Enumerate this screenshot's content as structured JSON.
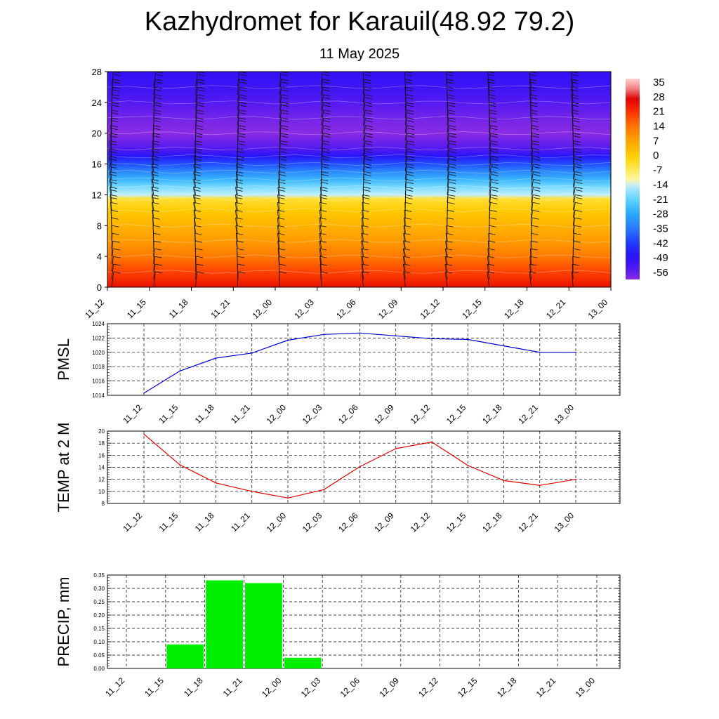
{
  "title": "Kazhydromet for Karauil(48.92 79.2)",
  "subtitle": "11 May 2025",
  "time_labels": [
    "11_12",
    "11_15",
    "11_18",
    "11_21",
    "12_00",
    "12_03",
    "12_06",
    "12_09",
    "12_12",
    "12_15",
    "12_18",
    "12_21",
    "13_00"
  ],
  "colors": {
    "pmsl_line": "#0000cc",
    "temp_line": "#dd0000",
    "precip_bar": "#00ee00",
    "grid": "#000000"
  },
  "chart_data": [
    {
      "name_key": "cross_section",
      "type": "heatmap",
      "x": [
        "11_12",
        "11_15",
        "11_18",
        "11_21",
        "12_00",
        "12_03",
        "12_06",
        "12_09",
        "12_12",
        "12_15",
        "12_18",
        "12_21",
        "13_00"
      ],
      "yticks": [
        0,
        4,
        8,
        12,
        16,
        20,
        24,
        28
      ],
      "ylim": [
        0,
        28
      ],
      "colorbar": {
        "labels": [
          "35",
          "28",
          "21",
          "14",
          "7",
          "0",
          "-7",
          "-14",
          "-21",
          "-28",
          "-35",
          "-42",
          "-49",
          "-56"
        ],
        "range": [
          -60,
          38
        ]
      },
      "temperature_profile": [
        {
          "y": 0,
          "t": 26
        },
        {
          "y": 2,
          "t": 20
        },
        {
          "y": 4,
          "t": 14
        },
        {
          "y": 6,
          "t": 9
        },
        {
          "y": 8,
          "t": 5
        },
        {
          "y": 10,
          "t": 1
        },
        {
          "y": 11.5,
          "t": -4
        },
        {
          "y": 12,
          "t": -14
        },
        {
          "y": 13,
          "t": -19
        },
        {
          "y": 14,
          "t": -26
        },
        {
          "y": 15,
          "t": -33
        },
        {
          "y": 16,
          "t": -40
        },
        {
          "y": 17,
          "t": -48
        },
        {
          "y": 18,
          "t": -55
        },
        {
          "y": 20,
          "t": -60
        },
        {
          "y": 22,
          "t": -58
        },
        {
          "y": 24,
          "t": -55
        },
        {
          "y": 26,
          "t": -52
        },
        {
          "y": 28,
          "t": -50
        }
      ],
      "wind_levels": [
        1,
        2,
        3,
        4,
        5,
        6,
        7,
        8,
        9,
        10,
        11,
        12,
        13,
        14,
        15,
        16,
        17,
        18,
        19,
        20,
        21,
        22,
        23,
        24,
        25,
        26,
        27
      ]
    },
    {
      "name_key": "pmsl",
      "type": "line",
      "ylabel": "PMSL",
      "x": [
        "11_12",
        "11_15",
        "11_18",
        "11_21",
        "12_00",
        "12_03",
        "12_06",
        "12_09",
        "12_12",
        "12_15",
        "12_18",
        "12_21",
        "13_00"
      ],
      "values": [
        1014.3,
        1017.4,
        1019.2,
        1019.9,
        1021.7,
        1022.5,
        1022.7,
        1022.3,
        1021.9,
        1021.8,
        1020.9,
        1020.0,
        1020.0
      ],
      "ylim": [
        1014,
        1024
      ],
      "yticks": [
        "1014",
        "1016",
        "1018",
        "1020",
        "1022",
        "1024"
      ],
      "grid": true
    },
    {
      "name_key": "temp",
      "type": "line",
      "ylabel": "TEMP at 2 M",
      "x": [
        "11_12",
        "11_15",
        "11_18",
        "11_21",
        "12_00",
        "12_03",
        "12_06",
        "12_09",
        "12_12",
        "12_15",
        "12_18",
        "12_21",
        "13_00"
      ],
      "values": [
        19.5,
        14.4,
        11.4,
        10.0,
        8.9,
        10.3,
        14.1,
        17.1,
        18.2,
        14.3,
        11.8,
        11.0,
        12.0
      ],
      "ylim": [
        8,
        20
      ],
      "yticks": [
        "8",
        "10",
        "12",
        "14",
        "16",
        "18",
        "20"
      ],
      "grid": true
    },
    {
      "name_key": "precip",
      "type": "bar",
      "ylabel": "PRECIP, mm",
      "x": [
        "11_12",
        "11_15",
        "11_18",
        "11_21",
        "12_00",
        "12_03",
        "12_06",
        "12_09",
        "12_12",
        "12_15",
        "12_18",
        "12_21",
        "13_00"
      ],
      "values": [
        0,
        0,
        0.09,
        0.33,
        0.32,
        0.04,
        0,
        0,
        0,
        0,
        0,
        0,
        0
      ],
      "ylim": [
        0,
        0.35
      ],
      "yticks": [
        "0.00",
        "0.05",
        "0.10",
        "0.15",
        "0.20",
        "0.25",
        "0.30",
        "0.35"
      ],
      "grid": true
    }
  ]
}
